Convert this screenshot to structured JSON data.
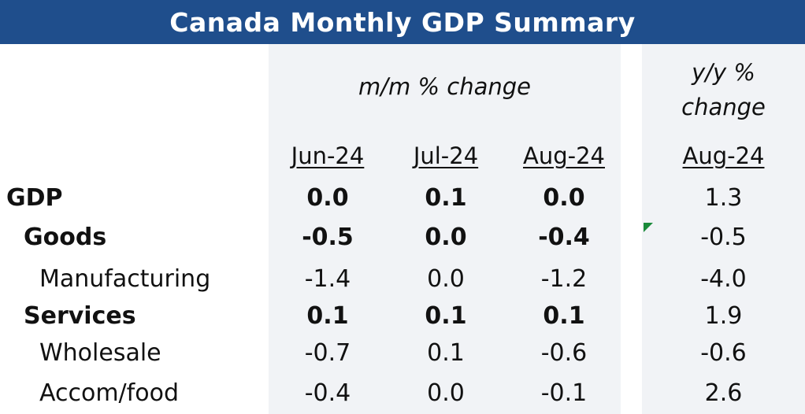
{
  "title": "Canada Monthly GDP Summary",
  "group_headers": {
    "mm": "m/m % change",
    "yy_line1": "y/y %",
    "yy_line2": "change"
  },
  "columns": [
    "Jun-24",
    "Jul-24",
    "Aug-24",
    "Aug-24"
  ],
  "rows": [
    {
      "label": "GDP",
      "values": [
        "0.0",
        "0.1",
        "0.0",
        "1.3"
      ]
    },
    {
      "label": "Goods",
      "values": [
        "-0.5",
        "0.0",
        "-0.4",
        "-0.5"
      ]
    },
    {
      "label": "Manufacturing",
      "values": [
        "-1.4",
        "0.0",
        "-1.2",
        "-4.0"
      ]
    },
    {
      "label": "Services",
      "values": [
        "0.1",
        "0.1",
        "0.1",
        "1.9"
      ]
    },
    {
      "label": "Wholesale",
      "values": [
        "-0.7",
        "0.1",
        "-0.6",
        "-0.6"
      ]
    },
    {
      "label": "Accom/food",
      "values": [
        "-0.4",
        "0.0",
        "-0.1",
        "2.6"
      ]
    }
  ],
  "colors": {
    "header_bg": "#1f4e8c",
    "shade": "#f1f3f6",
    "marker": "#1a8a3a"
  }
}
